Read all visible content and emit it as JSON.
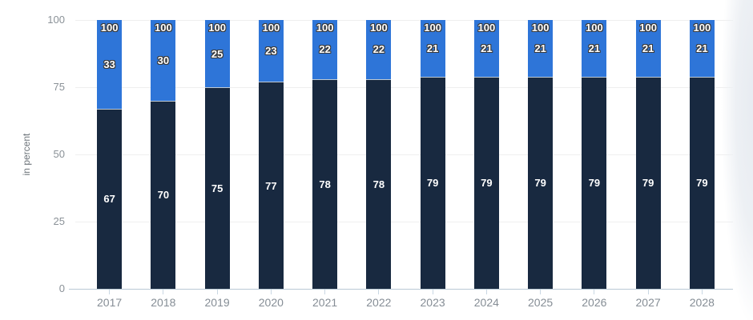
{
  "chart_data": {
    "type": "bar",
    "variant": "stacked-column",
    "title": "",
    "xlabel": "",
    "ylabel": "in percent",
    "ylim": [
      0,
      100
    ],
    "yticks": [
      0,
      25,
      50,
      75,
      100
    ],
    "grid": true,
    "legend": "none",
    "categories": [
      "2017",
      "2018",
      "2019",
      "2020",
      "2021",
      "2022",
      "2023",
      "2024",
      "2025",
      "2026",
      "2027",
      "2028"
    ],
    "series": [
      {
        "name": "bottom-segment-dark-navy",
        "color": "#182940",
        "values": [
          67,
          70,
          75,
          77,
          78,
          78,
          79,
          79,
          79,
          79,
          79,
          79
        ]
      },
      {
        "name": "top-segment-bright-blue",
        "color": "#2e75d8",
        "values": [
          33,
          30,
          25,
          23,
          22,
          22,
          21,
          21,
          21,
          21,
          21,
          21
        ]
      }
    ],
    "stack_totals": [
      100,
      100,
      100,
      100,
      100,
      100,
      100,
      100,
      100,
      100,
      100,
      100
    ]
  },
  "colors": {
    "background": "#ffffff",
    "gridline": "#efefef",
    "axis_line": "#b9c9d6",
    "tick_mark": "#c9d7e3",
    "y_tick_label": "#8a9197",
    "x_tick_label": "#858d95",
    "axis_title": "#6d747a",
    "bar_label": "#ffffff",
    "bar_label_outline": "#3a3a3a",
    "page_edge": "#e7ebf1"
  }
}
